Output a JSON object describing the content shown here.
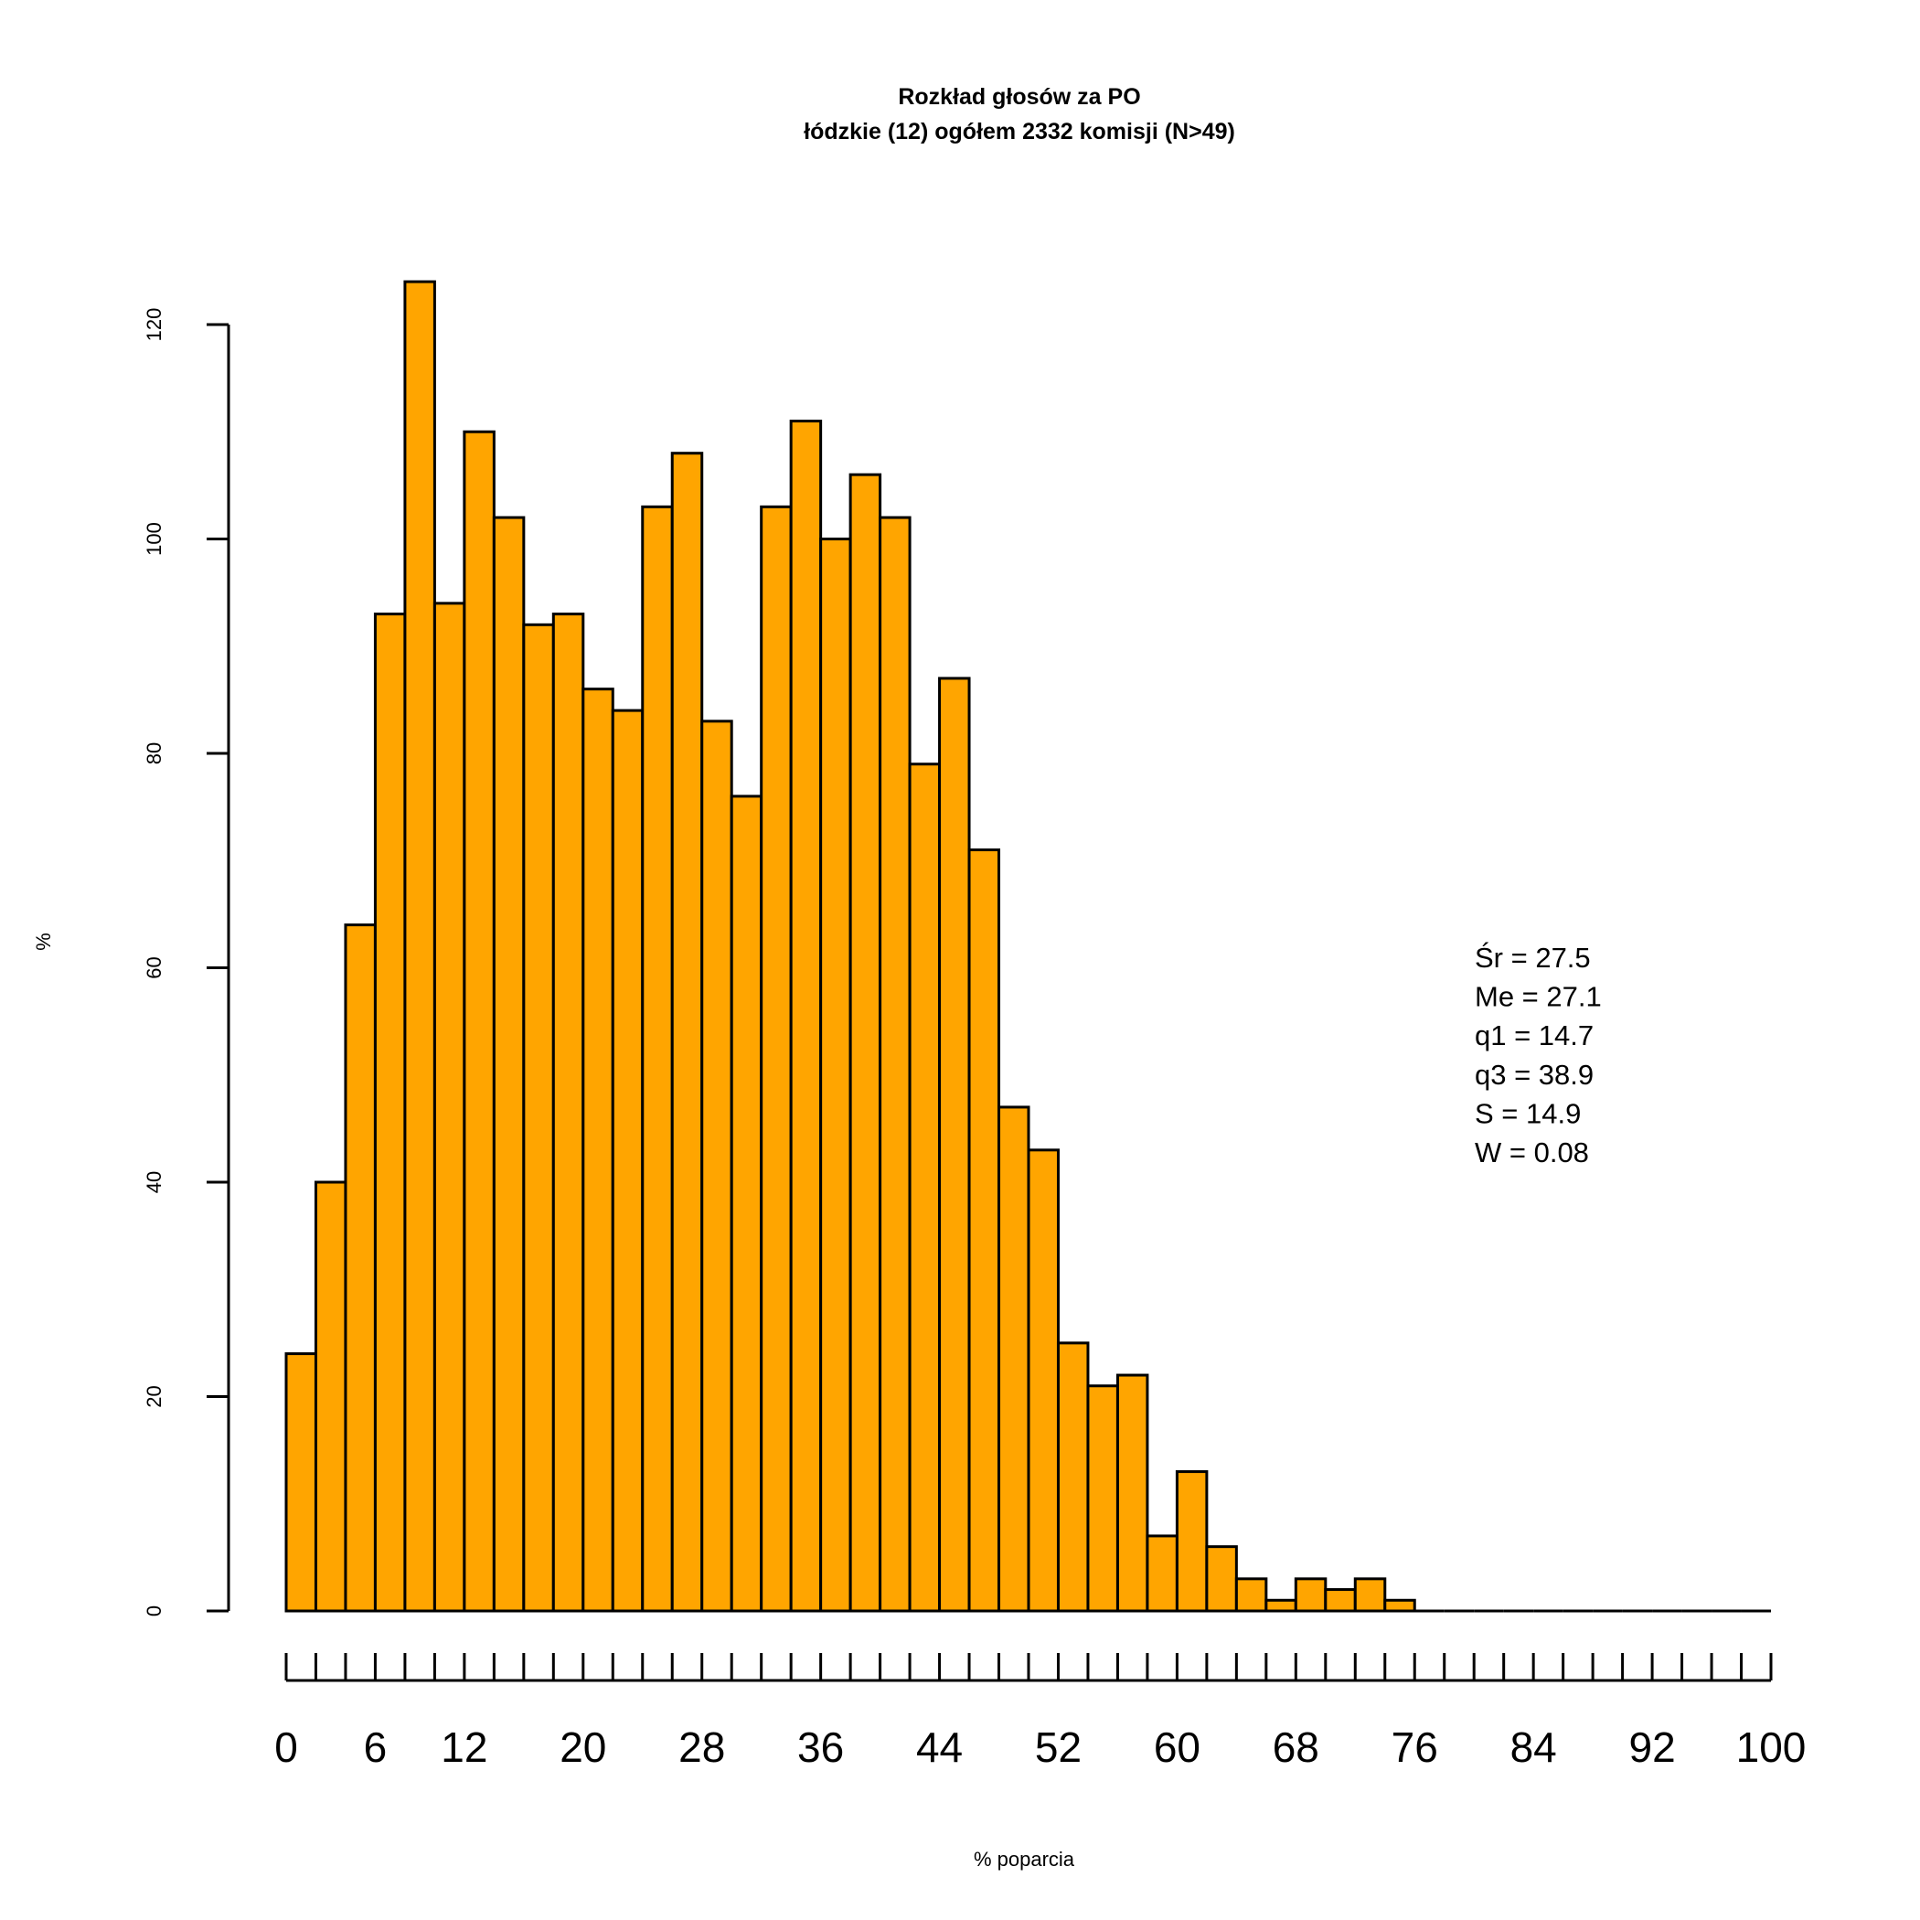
{
  "chart_data": {
    "type": "bar",
    "title": "Rozkład głosów za PO",
    "subtitle": "łódzkie (12) ogółem 2332 komisji (N>49)",
    "xlabel": "% poparcia",
    "ylabel": "%",
    "bin_width": 2,
    "bin_start": 0,
    "values": [
      24,
      40,
      64,
      93,
      124,
      94,
      110,
      102,
      92,
      93,
      86,
      84,
      103,
      108,
      83,
      76,
      103,
      111,
      100,
      106,
      102,
      79,
      87,
      71,
      47,
      43,
      25,
      21,
      22,
      7,
      13,
      6,
      3,
      1,
      3,
      2,
      3,
      1,
      0,
      0,
      0,
      0,
      0,
      0,
      0,
      0,
      0,
      0,
      0,
      0
    ],
    "xlim": [
      0,
      100
    ],
    "ylim": [
      0,
      120
    ],
    "y_ticks": [
      "0",
      "20",
      "40",
      "60",
      "80",
      "100",
      "120"
    ],
    "x_tick_labels": [
      "0",
      "6",
      "12",
      "20",
      "28",
      "36",
      "44",
      "52",
      "60",
      "68",
      "76",
      "84",
      "92",
      "100"
    ],
    "stats": [
      "Śr = 27.5",
      "Me = 27.1",
      "q1 = 14.7",
      "q3 = 38.9",
      "S = 14.9",
      "W = 0.08"
    ],
    "bar_color": "#ffa500"
  }
}
